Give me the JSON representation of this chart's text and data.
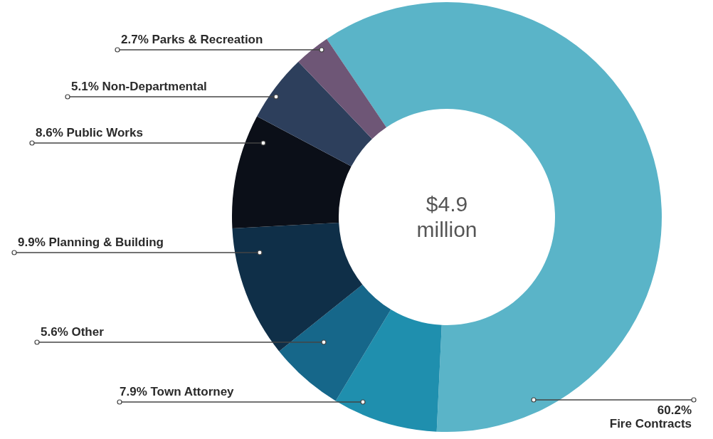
{
  "chart_data": {
    "type": "donut",
    "categories": [
      "60.2% Fire Contracts",
      "7.9% Town Attorney",
      "5.6% Other",
      "9.9% Planning & Building",
      "8.6% Public Works",
      "5.1% Non-Departmental",
      "2.7% Parks & Recreation"
    ],
    "values": [
      60.2,
      7.9,
      5.6,
      9.9,
      8.6,
      5.1,
      2.7
    ],
    "colors": [
      "#5ab4c8",
      "#1f8fae",
      "#16678a",
      "#0f2f48",
      "#0b0f18",
      "#2d3f5c",
      "#6e5676"
    ],
    "annotations": [
      "$4.9 million"
    ]
  }
}
